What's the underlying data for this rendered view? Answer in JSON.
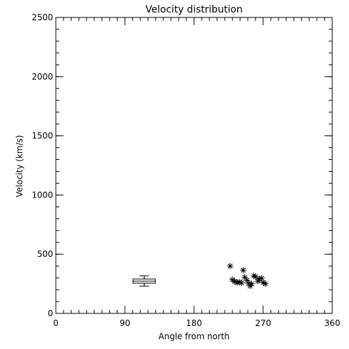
{
  "chart_data": {
    "type": "scatter",
    "title": "Velocity distribution",
    "xlabel": "Angle from north",
    "ylabel": "Velocity (km/s)",
    "xlim": [
      0,
      360
    ],
    "ylim": [
      0,
      2500
    ],
    "x_ticks": [
      0,
      90,
      180,
      270,
      360
    ],
    "y_ticks": [
      0,
      500,
      1000,
      1500,
      2000,
      2500
    ],
    "x_ticks_labels": [
      "0",
      "90",
      "180",
      "270",
      "360"
    ],
    "y_ticks_labels": [
      "0",
      "500",
      "1000",
      "1500",
      "2000",
      "2500"
    ],
    "x_minor_step": 10,
    "y_minor_step": 100,
    "grid": false,
    "box": {
      "x": 115,
      "min": 230,
      "q1": 255,
      "median": 272,
      "q3": 290,
      "max": 318
    },
    "points": [
      {
        "x": 227,
        "y": 400
      },
      {
        "x": 230,
        "y": 285
      },
      {
        "x": 233,
        "y": 270
      },
      {
        "x": 236,
        "y": 260
      },
      {
        "x": 239,
        "y": 265
      },
      {
        "x": 242,
        "y": 258
      },
      {
        "x": 244,
        "y": 365
      },
      {
        "x": 246,
        "y": 305
      },
      {
        "x": 249,
        "y": 280
      },
      {
        "x": 251,
        "y": 255
      },
      {
        "x": 253,
        "y": 232
      },
      {
        "x": 255,
        "y": 250
      },
      {
        "x": 258,
        "y": 318
      },
      {
        "x": 260,
        "y": 310
      },
      {
        "x": 263,
        "y": 272
      },
      {
        "x": 265,
        "y": 290
      },
      {
        "x": 268,
        "y": 298
      },
      {
        "x": 270,
        "y": 262
      },
      {
        "x": 273,
        "y": 250
      }
    ]
  }
}
